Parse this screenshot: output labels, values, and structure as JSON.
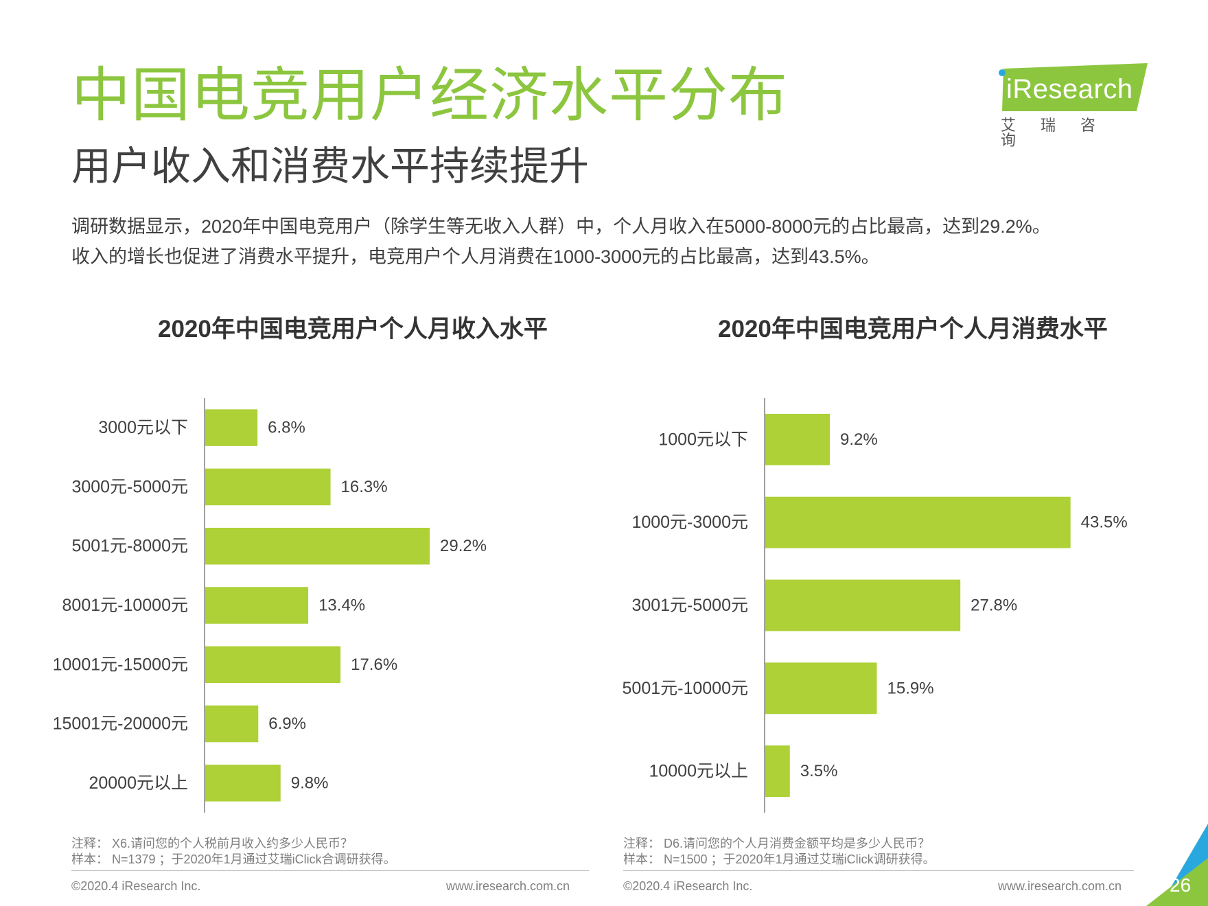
{
  "header": {
    "title": "中国电竞用户经济水平分布",
    "subtitle": "用户收入和消费水平持续提升",
    "description": [
      "调研数据显示，2020年中国电竞用户（除学生等无收入人群）中，个人月收入在5000-8000元的占比最高，达到29.2%。",
      "收入的增长也促进了消费水平提升，电竞用户个人月消费在1000-3000元的占比最高，达到43.5%。"
    ]
  },
  "logo": {
    "text": "iResearch",
    "subtext": "艾瑞咨询"
  },
  "colors": {
    "accent": "#8cc63f",
    "bar": "#add136",
    "corner_blue": "#29a8e0",
    "corner_green": "#8cc63f"
  },
  "chart_data": [
    {
      "type": "bar",
      "orientation": "horizontal",
      "title": "2020年中国电竞用户个人月收入水平",
      "categories": [
        "3000元以下",
        "3000元-5000元",
        "5001元-8000元",
        "8001元-10000元",
        "10001元-15000元",
        "15001元-20000元",
        "20000元以上"
      ],
      "values": [
        6.8,
        16.3,
        29.2,
        13.4,
        17.6,
        6.9,
        9.8
      ],
      "value_labels": [
        "6.8%",
        "16.3%",
        "29.2%",
        "13.4%",
        "17.6%",
        "6.9%",
        "9.8%"
      ],
      "unit": "%",
      "xlim": [
        0,
        45
      ]
    },
    {
      "type": "bar",
      "orientation": "horizontal",
      "title": "2020年中国电竞用户个人月消费水平",
      "categories": [
        "1000元以下",
        "1000元-3000元",
        "3001元-5000元",
        "5001元-10000元",
        "10000元以上"
      ],
      "values": [
        9.2,
        43.5,
        27.8,
        15.9,
        3.5
      ],
      "value_labels": [
        "9.2%",
        "43.5%",
        "27.8%",
        "15.9%",
        "3.5%"
      ],
      "unit": "%",
      "xlim": [
        0,
        45
      ]
    }
  ],
  "notes": [
    {
      "line1": "注释： X6.请问您的个人税前月收入约多少人民币？",
      "line2": "样本： N=1379 ；于2020年1月通过艾瑞iClick合调研获得。"
    },
    {
      "line1": "注释： D6.请问您的个人月消费金额平均是多少人民币？",
      "line2": "样本： N=1500 ；于2020年1月通过艾瑞iClick调研获得。"
    }
  ],
  "footer": {
    "copyright": "©2020.4 iResearch Inc.",
    "website": "www.iresearch.com.cn",
    "page_number": "26"
  }
}
